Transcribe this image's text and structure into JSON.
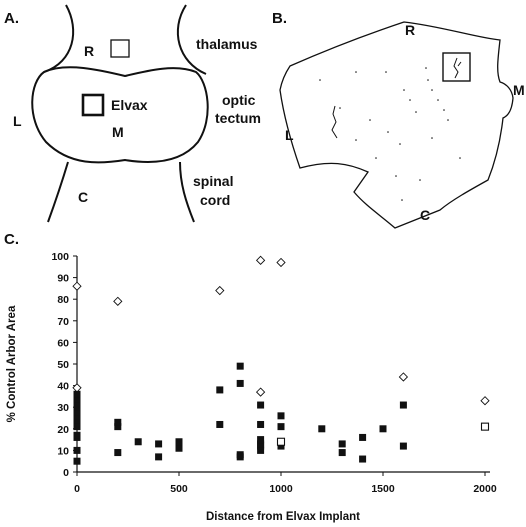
{
  "panelA": {
    "label": "A.",
    "R": "R",
    "L": "L",
    "M": "M",
    "C": "C",
    "implant_label": "Elvax",
    "thalamus": "thalamus",
    "optic_tectum": [
      "optic",
      "tectum"
    ],
    "spinal_cord": [
      "spinal",
      "cord"
    ]
  },
  "panelB": {
    "label": "B.",
    "R": "R",
    "L": "L",
    "M": "M",
    "C": "C"
  },
  "panelC": {
    "label": "C."
  },
  "chart_data": {
    "type": "scatter",
    "xlabel": "Distance from Elvax Implant",
    "ylabel": "% Control Arbor Area",
    "xlim": [
      0,
      2000
    ],
    "ylim": [
      0,
      100
    ],
    "x_ticks": [
      "0",
      "500",
      "1000",
      "1500",
      "2000"
    ],
    "y_ticks": [
      "0",
      "10",
      "20",
      "30",
      "40",
      "50",
      "60",
      "70",
      "80",
      "90",
      "100"
    ],
    "grid": false,
    "series": [
      {
        "marker": "filled-square",
        "points": [
          [
            0,
            5
          ],
          [
            0,
            10
          ],
          [
            0,
            16
          ],
          [
            0,
            17
          ],
          [
            0,
            21
          ],
          [
            0,
            24
          ],
          [
            0,
            26
          ],
          [
            0,
            28
          ],
          [
            0,
            30
          ],
          [
            0,
            32
          ],
          [
            0,
            34
          ],
          [
            0,
            36
          ],
          [
            200,
            9
          ],
          [
            200,
            21
          ],
          [
            200,
            23
          ],
          [
            300,
            14
          ],
          [
            400,
            7
          ],
          [
            400,
            13
          ],
          [
            500,
            11
          ],
          [
            500,
            14
          ],
          [
            700,
            22
          ],
          [
            700,
            38
          ],
          [
            800,
            7
          ],
          [
            800,
            8
          ],
          [
            800,
            49
          ],
          [
            800,
            41
          ],
          [
            900,
            10
          ],
          [
            900,
            12
          ],
          [
            900,
            13
          ],
          [
            900,
            15
          ],
          [
            900,
            22
          ],
          [
            900,
            31
          ],
          [
            1000,
            12
          ],
          [
            1000,
            21
          ],
          [
            1000,
            26
          ],
          [
            1200,
            20
          ],
          [
            1300,
            9
          ],
          [
            1300,
            13
          ],
          [
            1400,
            6
          ],
          [
            1400,
            16
          ],
          [
            1500,
            20
          ],
          [
            1600,
            12
          ],
          [
            1600,
            31
          ]
        ]
      },
      {
        "marker": "open-square",
        "points": [
          [
            1000,
            14
          ],
          [
            2000,
            21
          ]
        ]
      },
      {
        "marker": "open-diamond",
        "points": [
          [
            0,
            86
          ],
          [
            0,
            39
          ],
          [
            200,
            79
          ],
          [
            700,
            84
          ],
          [
            900,
            98
          ],
          [
            900,
            37
          ],
          [
            1000,
            97
          ],
          [
            1600,
            44
          ],
          [
            2000,
            33
          ]
        ]
      }
    ]
  }
}
